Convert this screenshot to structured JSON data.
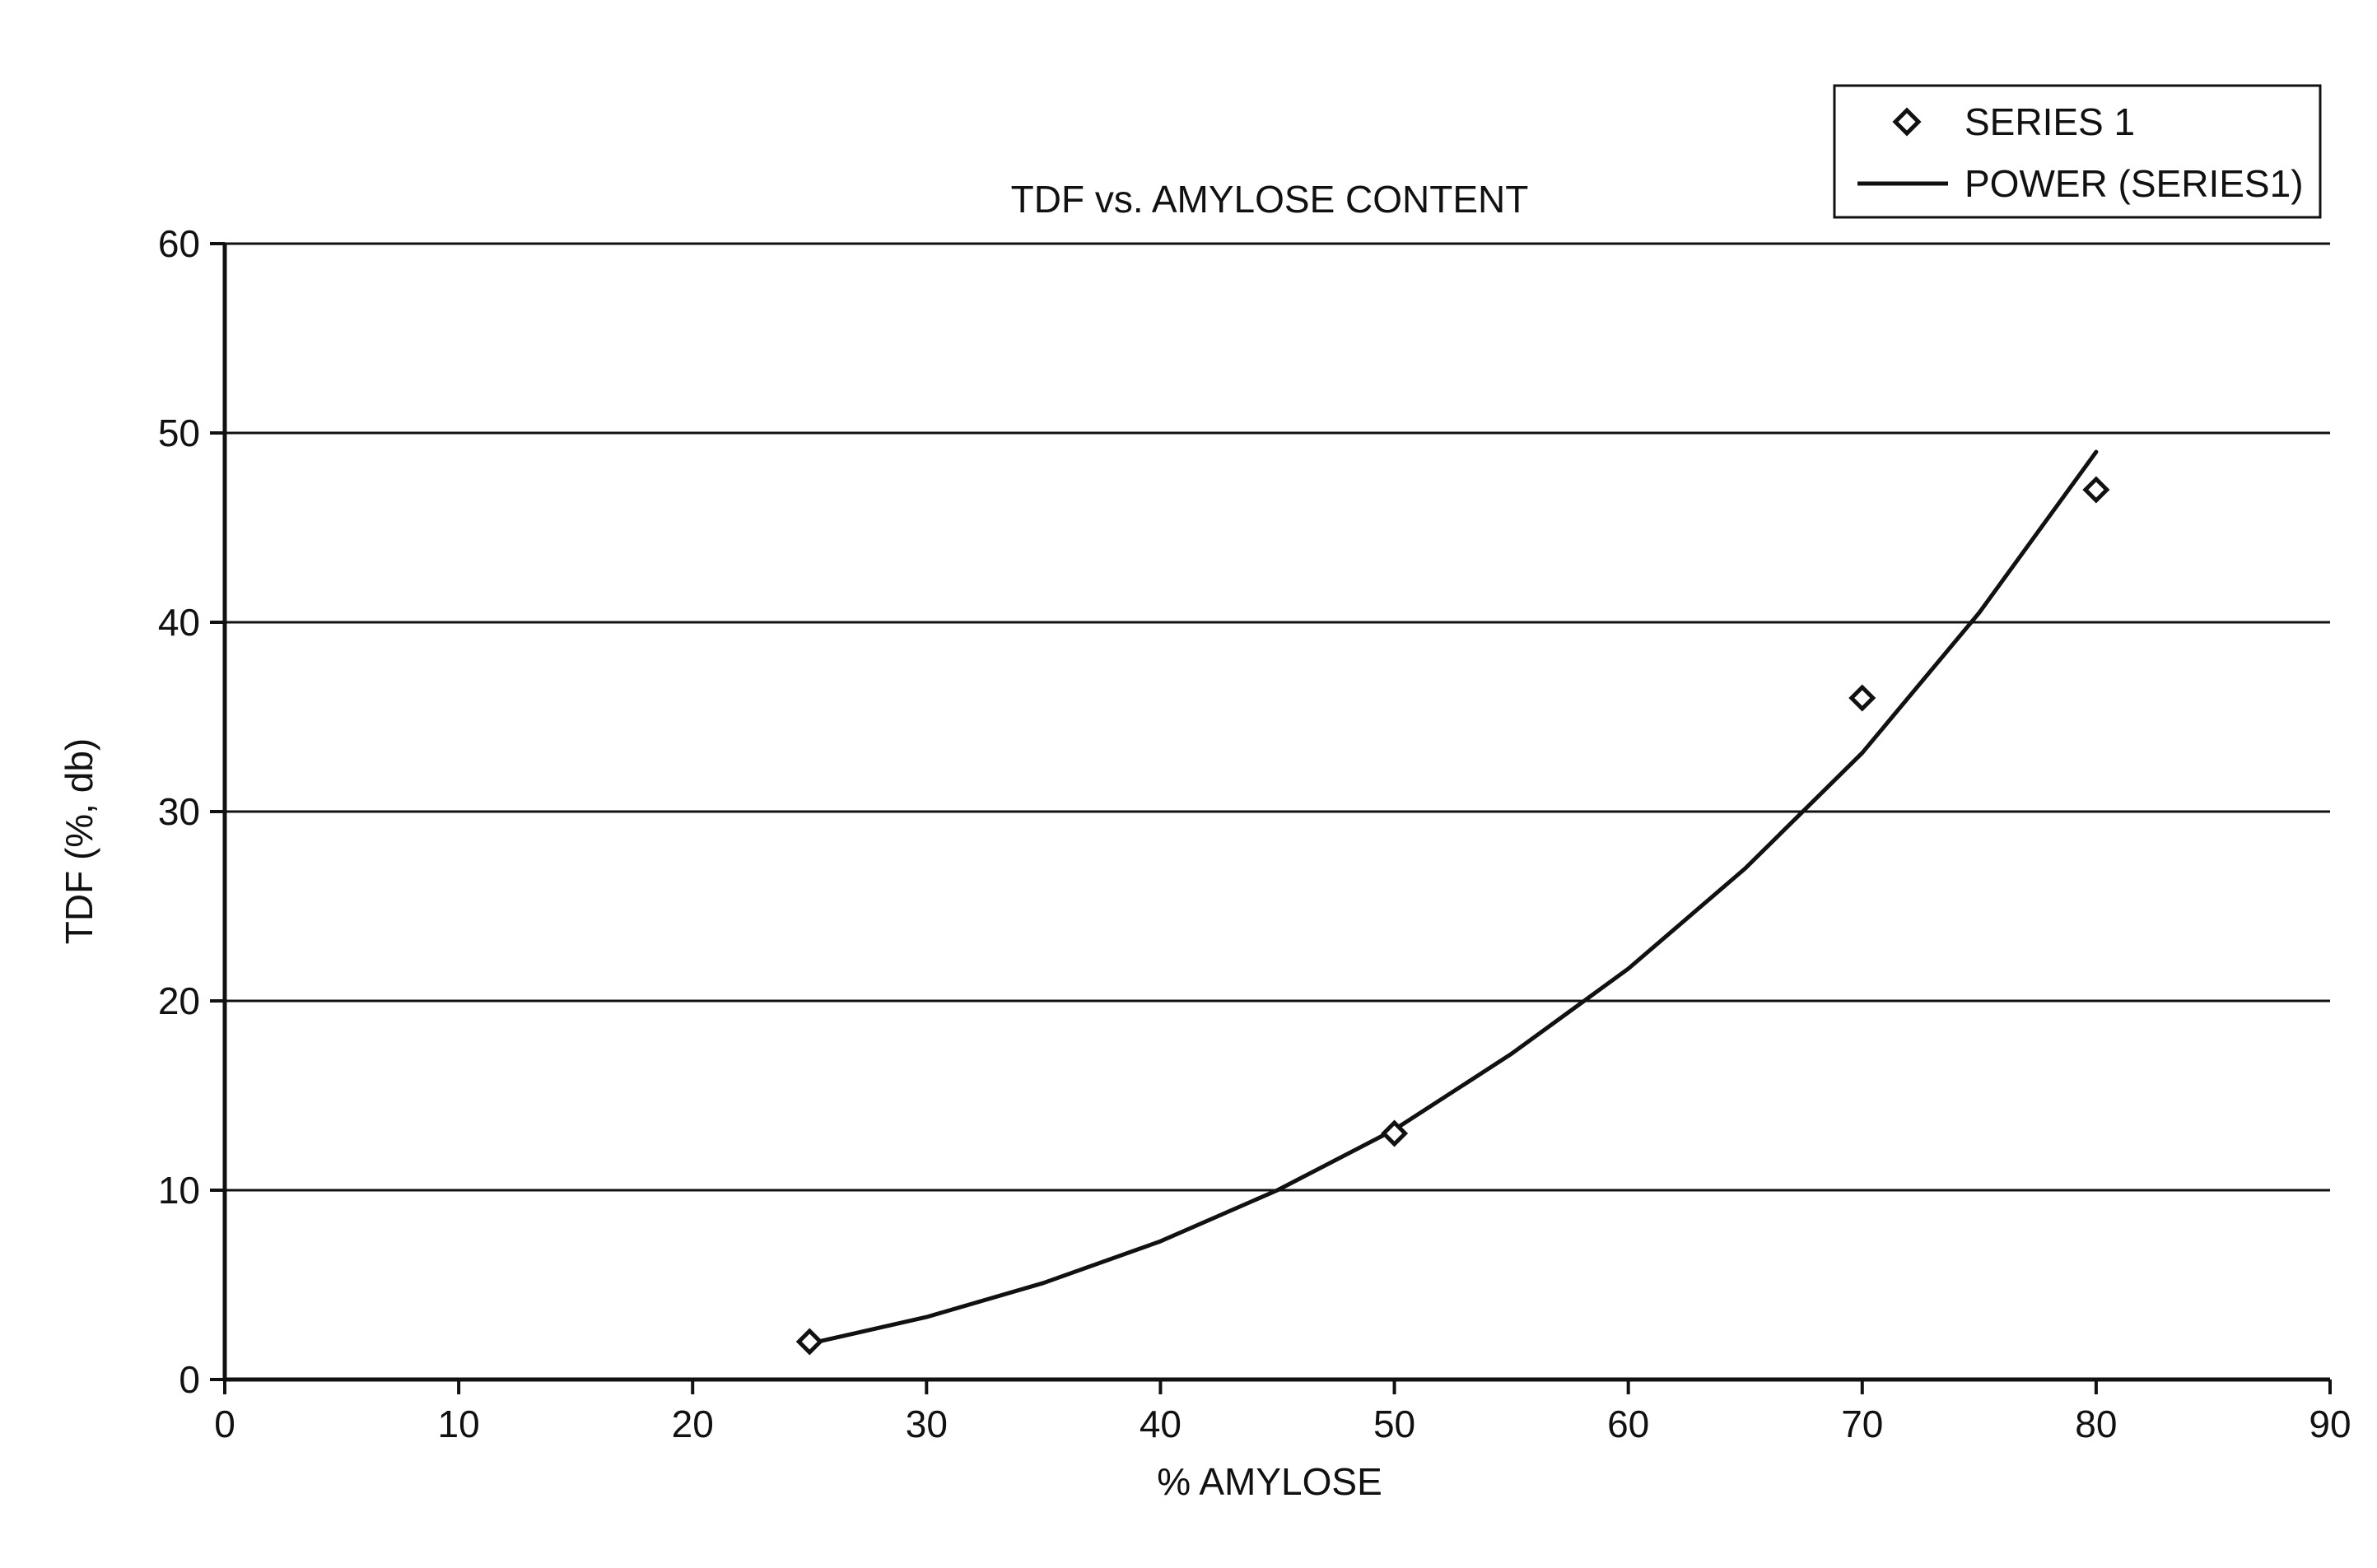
{
  "chart_data": {
    "type": "scatter",
    "title": "TDF vs. AMYLOSE CONTENT",
    "xlabel": "% AMYLOSE",
    "ylabel": "TDF (%, db)",
    "xlim": [
      0,
      90
    ],
    "ylim": [
      0,
      60
    ],
    "xticks": [
      0,
      10,
      20,
      30,
      40,
      50,
      60,
      70,
      80,
      90
    ],
    "yticks": [
      0,
      10,
      20,
      30,
      40,
      50,
      60
    ],
    "grid": "horizontal",
    "legend": "top-right",
    "series": [
      {
        "name": "SERIES 1",
        "kind": "points",
        "marker": "diamond-open",
        "x": [
          25,
          50,
          70,
          80
        ],
        "y": [
          2,
          13,
          36,
          47
        ]
      },
      {
        "name": "POWER (SERIES1)",
        "kind": "trendline",
        "model": "power",
        "x": [
          25,
          30,
          35,
          40,
          45,
          50,
          55,
          60,
          65,
          70,
          75,
          80
        ],
        "y": [
          1.9,
          3.3,
          5.1,
          7.3,
          10.0,
          13.2,
          17.2,
          21.7,
          27.0,
          33.1,
          40.5,
          49.0
        ]
      }
    ],
    "colors": {
      "ink": "#111111",
      "background": "#ffffff"
    }
  }
}
